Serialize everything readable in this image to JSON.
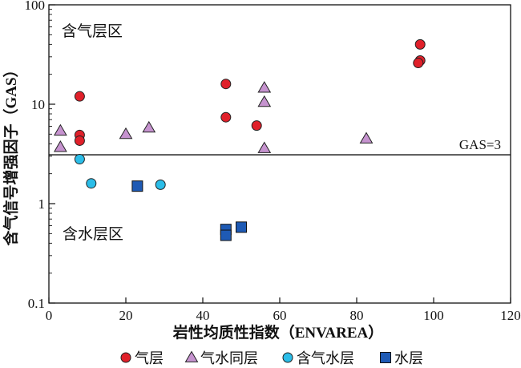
{
  "chart_data": {
    "type": "scatter",
    "xlabel": "岩性均质性指数（ENVAREA）",
    "ylabel": "含气信号增强因子（GAS）",
    "x_scale": "linear",
    "y_scale": "log",
    "xlim": [
      0,
      120
    ],
    "ylim": [
      0.1,
      100
    ],
    "x_ticks": [
      0,
      20,
      40,
      60,
      80,
      100,
      120
    ],
    "y_ticks": [
      {
        "value": 0.1,
        "label": "0.1"
      },
      {
        "value": 1,
        "label": "1"
      },
      {
        "value": 10,
        "label": "10"
      },
      {
        "value": 100,
        "label": "100"
      }
    ],
    "grid": false,
    "legend_position": "bottom",
    "annotations": [
      {
        "text": "含气层区",
        "where": "upper-left"
      },
      {
        "text": "含水层区",
        "where": "lower-left"
      }
    ],
    "reference_line": {
      "y": 3.1,
      "label": "GAS=3"
    },
    "series": [
      {
        "name": "气层",
        "marker": "circle",
        "color": "#e0202a",
        "points": [
          [
            8,
            12
          ],
          [
            8,
            4.9
          ],
          [
            8,
            4.3
          ],
          [
            46,
            16
          ],
          [
            46,
            7.4
          ],
          [
            54,
            6.1
          ],
          [
            96.5,
            40
          ],
          [
            96.5,
            27.5
          ],
          [
            96,
            26
          ]
        ]
      },
      {
        "name": "气水同层",
        "marker": "triangle",
        "color": "#c693cf",
        "points": [
          [
            3,
            5.4
          ],
          [
            3,
            3.7
          ],
          [
            20,
            5.0
          ],
          [
            26,
            5.8
          ],
          [
            56,
            14.6
          ],
          [
            56,
            10.5
          ],
          [
            56,
            3.6
          ],
          [
            82.5,
            4.5
          ]
        ]
      },
      {
        "name": "含气水层",
        "marker": "circle",
        "color": "#2bbde8",
        "points": [
          [
            8,
            2.8
          ],
          [
            11,
            1.6
          ],
          [
            29,
            1.55
          ]
        ]
      },
      {
        "name": "水层",
        "marker": "square",
        "color": "#1e5ab4",
        "points": [
          [
            23,
            1.5
          ],
          [
            46,
            0.55
          ],
          [
            46,
            0.48
          ],
          [
            50,
            0.58
          ]
        ]
      }
    ]
  }
}
